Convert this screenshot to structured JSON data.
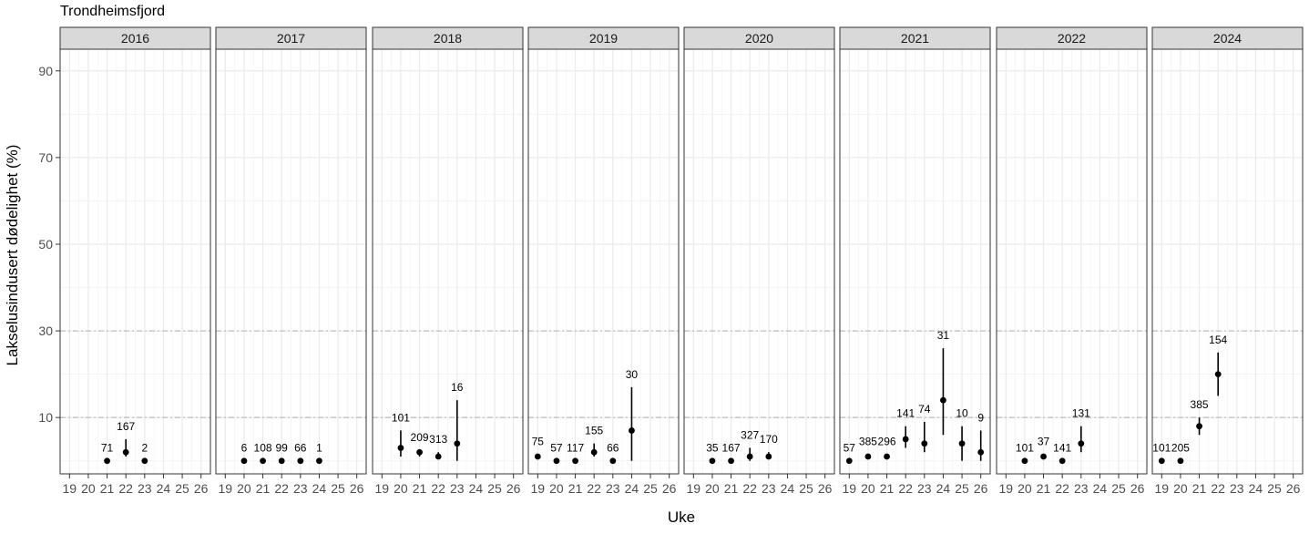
{
  "title": "Trondheimsfjord",
  "xlabel": "Uke",
  "ylabel": "Lakselusindusert dødelighet (%)",
  "chart_data": {
    "type": "scatter",
    "title": "Trondheimsfjord",
    "xlabel": "Uke",
    "ylabel": "Lakselusindusert dødelighet (%)",
    "x_ticks": [
      19,
      20,
      21,
      22,
      23,
      24,
      25,
      26
    ],
    "y_ticks": [
      10,
      30,
      50,
      70,
      90
    ],
    "xlim": [
      18.5,
      26.5
    ],
    "ylim": [
      -3,
      95
    ],
    "reference_lines": [
      10,
      30
    ],
    "grid": true,
    "error_bars": true,
    "panels": [
      {
        "name": "2016",
        "points": [
          {
            "x": 21,
            "y": 0,
            "lo": 0,
            "hi": 0,
            "n": "71"
          },
          {
            "x": 22,
            "y": 2,
            "lo": 1,
            "hi": 5,
            "n": "167"
          },
          {
            "x": 23,
            "y": 0,
            "lo": 0,
            "hi": 0,
            "n": "2"
          }
        ]
      },
      {
        "name": "2017",
        "points": [
          {
            "x": 20,
            "y": 0,
            "lo": 0,
            "hi": 0,
            "n": "6"
          },
          {
            "x": 21,
            "y": 0,
            "lo": 0,
            "hi": 0,
            "n": "108"
          },
          {
            "x": 22,
            "y": 0,
            "lo": 0,
            "hi": 0,
            "n": "99"
          },
          {
            "x": 23,
            "y": 0,
            "lo": 0,
            "hi": 0,
            "n": "66"
          },
          {
            "x": 24,
            "y": 0,
            "lo": 0,
            "hi": 0,
            "n": "1"
          }
        ]
      },
      {
        "name": "2018",
        "points": [
          {
            "x": 20,
            "y": 3,
            "lo": 1,
            "hi": 7,
            "n": "101"
          },
          {
            "x": 21,
            "y": 2,
            "lo": 1,
            "hi": 2.5,
            "n": "209"
          },
          {
            "x": 22,
            "y": 1,
            "lo": 0.5,
            "hi": 2,
            "n": "313"
          },
          {
            "x": 23,
            "y": 4,
            "lo": 0,
            "hi": 14,
            "n": "16"
          }
        ]
      },
      {
        "name": "2019",
        "points": [
          {
            "x": 19,
            "y": 1,
            "lo": 0.5,
            "hi": 1.5,
            "n": "75"
          },
          {
            "x": 20,
            "y": 0,
            "lo": 0,
            "hi": 0,
            "n": "57"
          },
          {
            "x": 21,
            "y": 0,
            "lo": 0,
            "hi": 0,
            "n": "117"
          },
          {
            "x": 22,
            "y": 2,
            "lo": 1,
            "hi": 4,
            "n": "155"
          },
          {
            "x": 23,
            "y": 0,
            "lo": 0,
            "hi": 0,
            "n": "66"
          },
          {
            "x": 24,
            "y": 7,
            "lo": 0,
            "hi": 17,
            "n": "30"
          }
        ]
      },
      {
        "name": "2020",
        "points": [
          {
            "x": 20,
            "y": 0,
            "lo": 0,
            "hi": 0,
            "n": "35"
          },
          {
            "x": 21,
            "y": 0,
            "lo": 0,
            "hi": 0,
            "n": "167"
          },
          {
            "x": 22,
            "y": 1,
            "lo": 0,
            "hi": 3,
            "n": "327"
          },
          {
            "x": 23,
            "y": 1,
            "lo": 0.5,
            "hi": 2,
            "n": "170"
          }
        ]
      },
      {
        "name": "2021",
        "points": [
          {
            "x": 19,
            "y": 0,
            "lo": 0,
            "hi": 0,
            "n": "57"
          },
          {
            "x": 20,
            "y": 1,
            "lo": 0.5,
            "hi": 1.5,
            "n": "385"
          },
          {
            "x": 21,
            "y": 1,
            "lo": 0.5,
            "hi": 1.5,
            "n": "296"
          },
          {
            "x": 22,
            "y": 5,
            "lo": 3,
            "hi": 8,
            "n": "141"
          },
          {
            "x": 23,
            "y": 4,
            "lo": 2,
            "hi": 9,
            "n": "74"
          },
          {
            "x": 24,
            "y": 14,
            "lo": 6,
            "hi": 26,
            "n": "31"
          },
          {
            "x": 25,
            "y": 4,
            "lo": 0,
            "hi": 8,
            "n": "10"
          },
          {
            "x": 26,
            "y": 2,
            "lo": 0,
            "hi": 7,
            "n": "9"
          }
        ]
      },
      {
        "name": "2022",
        "points": [
          {
            "x": 20,
            "y": 0,
            "lo": 0,
            "hi": 0,
            "n": "101"
          },
          {
            "x": 21,
            "y": 1,
            "lo": 0.5,
            "hi": 1.5,
            "n": "37"
          },
          {
            "x": 22,
            "y": 0,
            "lo": 0,
            "hi": 0,
            "n": "141"
          },
          {
            "x": 23,
            "y": 4,
            "lo": 2,
            "hi": 8,
            "n": "131"
          }
        ]
      },
      {
        "name": "2024",
        "points": [
          {
            "x": 19,
            "y": 0,
            "lo": 0,
            "hi": 0,
            "n": "101"
          },
          {
            "x": 20,
            "y": 0,
            "lo": 0,
            "hi": 0,
            "n": "205"
          },
          {
            "x": 21,
            "y": 8,
            "lo": 6,
            "hi": 10,
            "n": "385"
          },
          {
            "x": 22,
            "y": 20,
            "lo": 15,
            "hi": 25,
            "n": "154"
          }
        ]
      }
    ]
  }
}
